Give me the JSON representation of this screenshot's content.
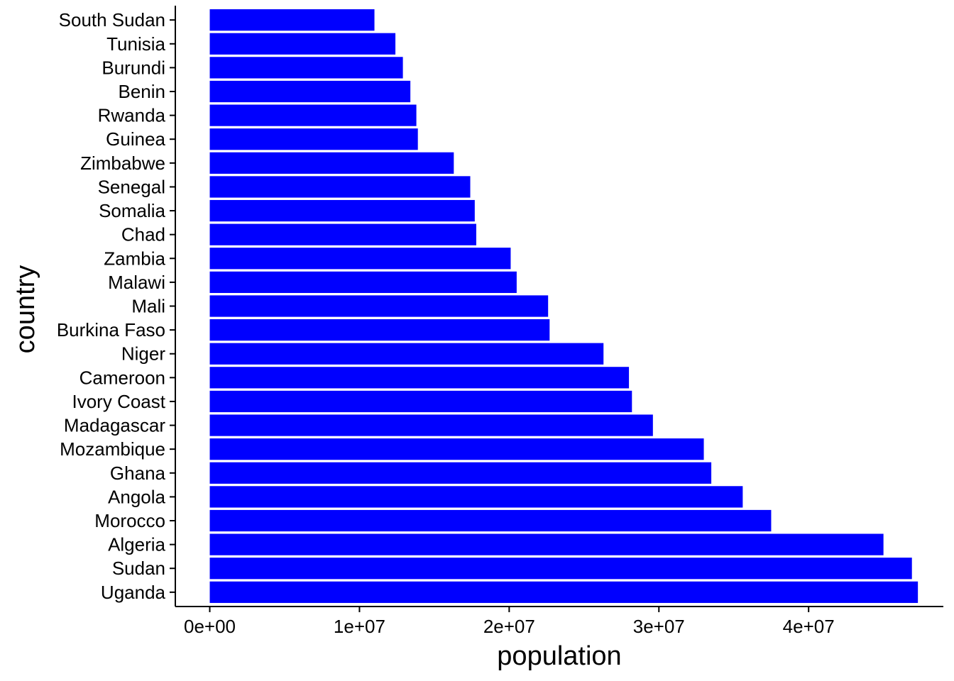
{
  "chart_data": {
    "type": "bar",
    "orientation": "horizontal",
    "xlabel": "population",
    "ylabel": "country",
    "xlim": [
      -2300000,
      49000000
    ],
    "x_ticks": [
      0,
      10000000,
      20000000,
      30000000,
      40000000
    ],
    "x_tick_labels": [
      "0e+00",
      "1e+07",
      "2e+07",
      "3e+07",
      "4e+07"
    ],
    "bar_color": "#0000ff",
    "grid": false,
    "legend": "none",
    "categories": [
      "South Sudan",
      "Tunisia",
      "Burundi",
      "Benin",
      "Rwanda",
      "Guinea",
      "Zimbabwe",
      "Senegal",
      "Somalia",
      "Chad",
      "Zambia",
      "Malawi",
      "Mali",
      "Burkina Faso",
      "Niger",
      "Cameroon",
      "Ivory Coast",
      "Madagascar",
      "Mozambique",
      "Ghana",
      "Angola",
      "Morocco",
      "Algeria",
      "Sudan",
      "Uganda"
    ],
    "values": [
      11000000,
      12400000,
      12900000,
      13400000,
      13800000,
      13900000,
      16300000,
      17400000,
      17700000,
      17800000,
      20100000,
      20500000,
      22600000,
      22700000,
      26300000,
      28000000,
      28200000,
      29600000,
      33000000,
      33500000,
      35600000,
      37500000,
      45000000,
      46900000,
      47300000
    ]
  }
}
